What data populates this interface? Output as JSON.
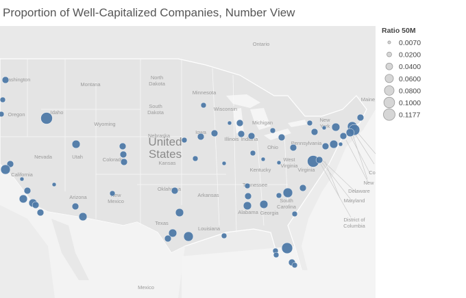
{
  "title": "Proportion of Well-Capitalized Companies, Number View",
  "legend": {
    "title": "Ratio 50M",
    "items": [
      {
        "value": 0.007,
        "label": "0.0070"
      },
      {
        "value": 0.02,
        "label": "0.0200"
      },
      {
        "value": 0.04,
        "label": "0.0400"
      },
      {
        "value": 0.06,
        "label": "0.0600"
      },
      {
        "value": 0.08,
        "label": "0.0800"
      },
      {
        "value": 0.1,
        "label": "0.1000"
      },
      {
        "value": 0.1177,
        "label": "0.1177"
      }
    ]
  },
  "labels": [
    "Ontario",
    "ashington",
    "Montana",
    [
      "North",
      "Dakota"
    ],
    "Minnesota",
    [
      "South",
      "Dakota"
    ],
    "Wisconsin",
    "Michigan",
    "Wyoming",
    "Nebraska",
    "Iowa",
    "Illinois",
    "Indiana",
    "Ohio",
    "Pennsylvania",
    [
      "New",
      "York"
    ],
    "Maine",
    "Oregon",
    "Idaho",
    "Nevada",
    "Utah",
    "Colorado",
    "Kansas",
    [
      "United",
      "States"
    ],
    "California",
    "Arizona",
    [
      "New",
      "Mexico"
    ],
    "Oklahoma",
    "Arkansas",
    "Texas",
    "Louisiana",
    "Tennessee",
    "Kentucky",
    "Virginia",
    [
      "West",
      "Virginia"
    ],
    [
      "South",
      "Carolina"
    ],
    "Georgia",
    "Alabama",
    "Mexico",
    "Delaware",
    "Maryland",
    [
      "District of",
      "Columbia"
    ],
    "New",
    "Co"
  ],
  "bubbles": {
    "color": "#4e79a7",
    "values": [
      0.04,
      0.026,
      0.026,
      0.1177,
      0.058,
      0.04,
      0.04,
      0.04,
      0.04,
      0.08,
      0.015,
      0.015,
      0.04,
      0.058,
      0.058,
      0.04,
      0.04,
      0.04,
      0.058,
      0.026,
      0.04,
      0.058,
      0.058,
      0.04,
      0.08,
      0.026,
      0.026,
      0.026,
      0.04,
      0.04,
      0.026,
      0.015,
      0.015,
      0.04,
      0.04,
      0.04,
      0.026,
      0.015,
      0.026,
      0.04,
      0.04,
      0.015,
      0.026,
      0.058,
      0.04,
      0.058,
      0.026,
      0.08,
      0.04,
      0.026,
      0.026,
      0.04,
      0.015,
      0.058,
      0.04,
      0.08,
      0.104,
      0.058,
      0.04,
      0.058,
      0.04,
      0.015,
      0.1177,
      0.04,
      0.104,
      0.026,
      0.026,
      0.04,
      0.026
    ]
  }
}
